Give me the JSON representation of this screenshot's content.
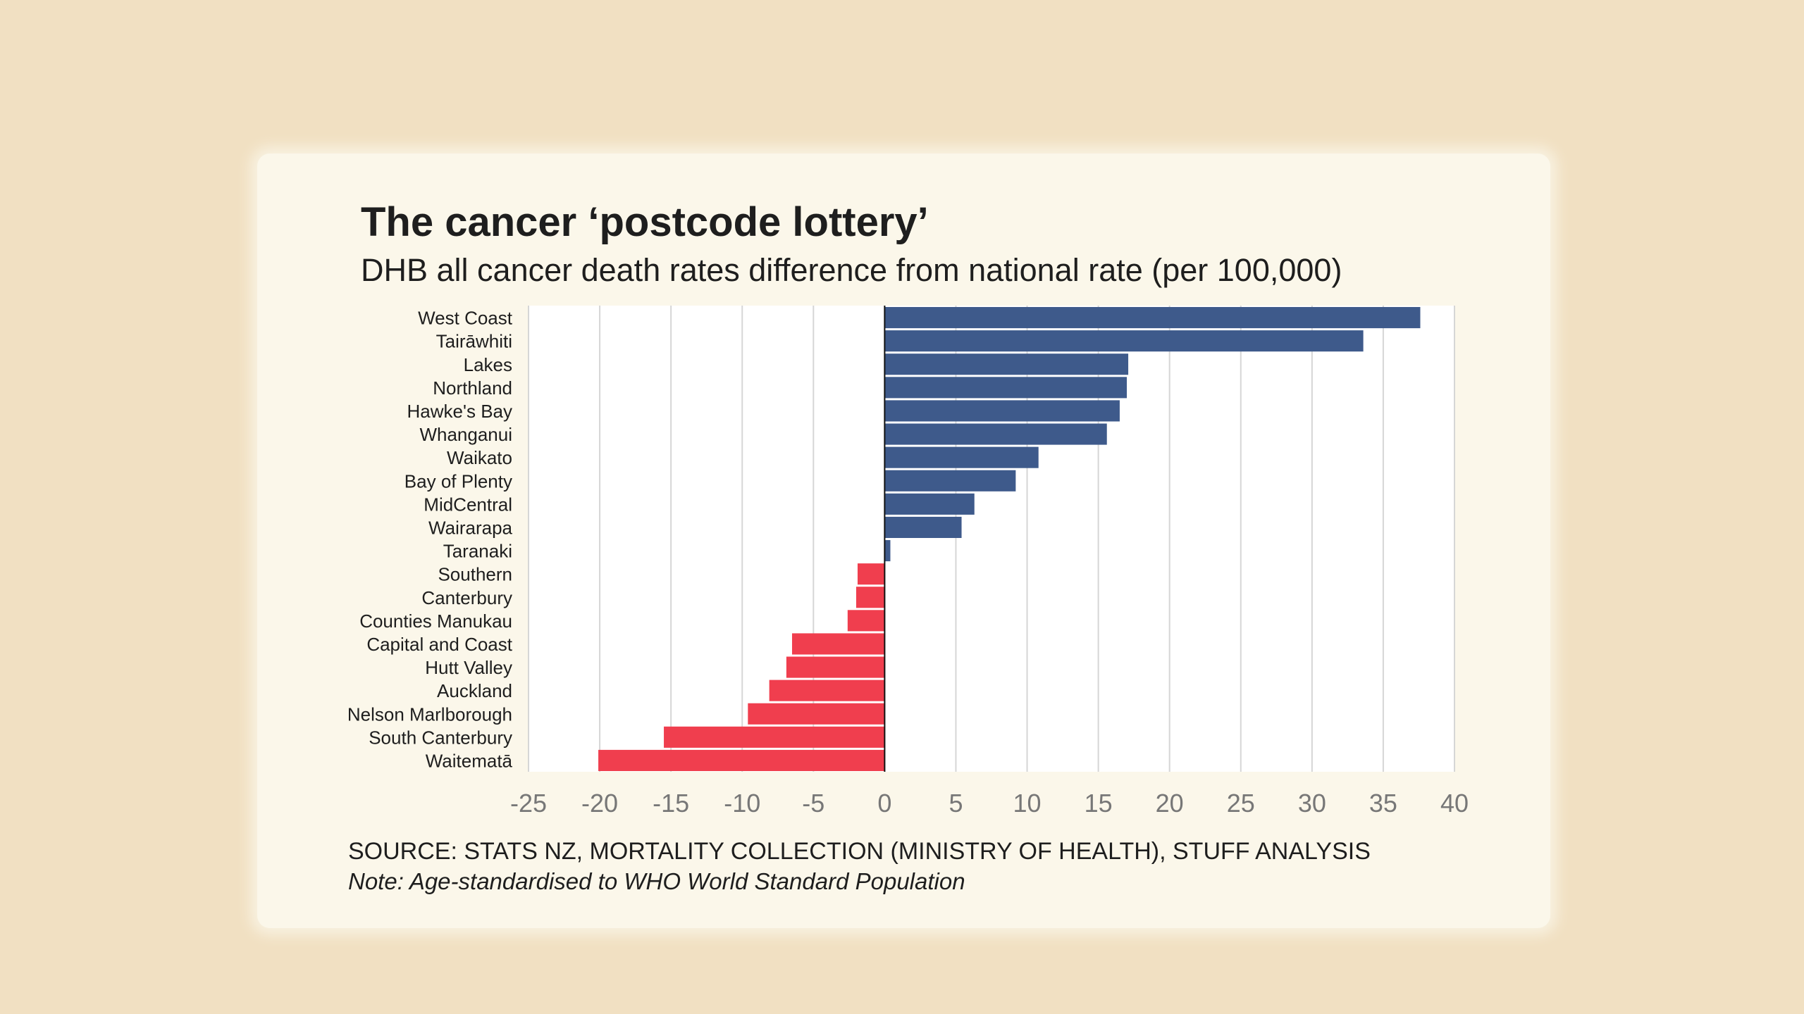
{
  "colors": {
    "background": "#f1e0c2",
    "card": "#fbf7ea",
    "positive": "#3e5a8b",
    "negative": "#f03e4e"
  },
  "chart_data": {
    "type": "bar",
    "orientation": "horizontal",
    "title": "The cancer ‘postcode lottery’",
    "subtitle": "DHB all cancer death rates difference from national rate (per 100,000)",
    "categories": [
      "West Coast",
      "Tairāwhiti",
      "Lakes",
      "Northland",
      "Hawke's Bay",
      "Whanganui",
      "Waikato",
      "Bay of Plenty",
      "MidCentral",
      "Wairarapa",
      "Taranaki",
      "Southern",
      "Canterbury",
      "Counties Manukau",
      "Capital and Coast",
      "Hutt Valley",
      "Auckland",
      "Nelson Marlborough",
      "South Canterbury",
      "Waitematā"
    ],
    "values": [
      37.6,
      33.6,
      17.1,
      17.0,
      16.5,
      15.6,
      10.8,
      9.2,
      6.3,
      5.4,
      0.4,
      -1.9,
      -2.0,
      -2.6,
      -6.5,
      -6.9,
      -8.1,
      -9.6,
      -15.5,
      -20.1
    ],
    "xlim": [
      -25,
      40
    ],
    "xticks": [
      "-25",
      "-20",
      "-15",
      "-10",
      "-5",
      "0",
      "5",
      "10",
      "15",
      "20",
      "25",
      "30",
      "35",
      "40"
    ],
    "grid": true,
    "source": "SOURCE: STATS NZ, MORTALITY COLLECTION (MINISTRY OF HEALTH), STUFF ANALYSIS",
    "note": "Note: Age-standardised to WHO World Standard Population"
  }
}
